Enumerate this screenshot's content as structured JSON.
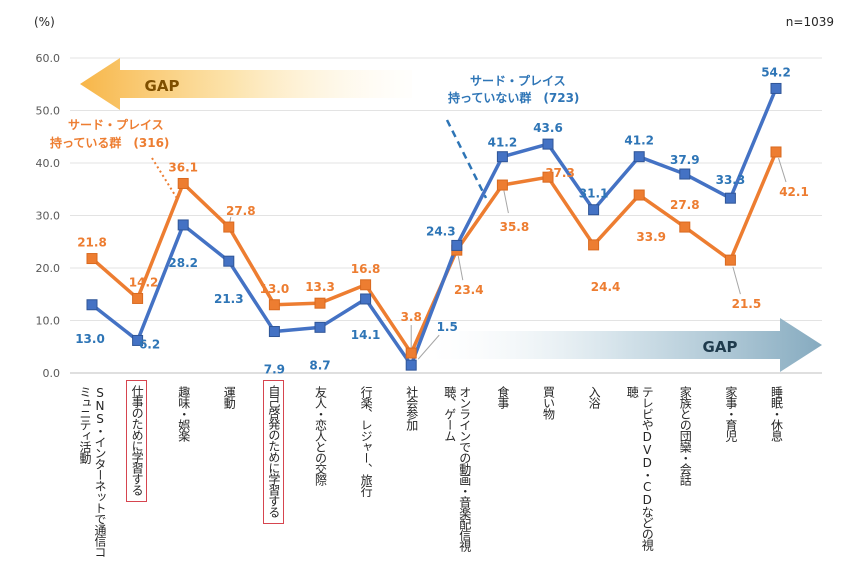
{
  "chart_data": {
    "type": "line",
    "unit_label": "(%)",
    "sample_size": "n=1039",
    "ylim": [
      0,
      60
    ],
    "yticks": [
      "0.0",
      "10.0",
      "20.0",
      "30.0",
      "40.0",
      "50.0",
      "60.0"
    ],
    "categories": [
      "SNS・インターネットで通信コミュニティ活動",
      "仕事のために学習する",
      "趣味・娯楽",
      "運動",
      "自己啓発のために学習する",
      "友人・恋人との交際",
      "行楽、レジャー、旅行",
      "社会参加",
      "オンラインでの動画・音楽配信視聴、ゲーム",
      "食事",
      "買い物",
      "入浴",
      "テレビやDVD・CDなどの視聴",
      "家族との団欒・会話",
      "家事・育児",
      "睡眠・休息"
    ],
    "highlighted_categories": [
      1,
      4
    ],
    "series": [
      {
        "name": "サード・プレイス持っている群 (316)",
        "color": "#ed7d31",
        "values": [
          21.8,
          14.2,
          36.1,
          27.8,
          13.0,
          13.3,
          16.8,
          3.8,
          23.4,
          35.8,
          37.3,
          24.4,
          33.9,
          27.8,
          21.5,
          42.1
        ],
        "labels": [
          "21.8",
          "14.2",
          "36.1",
          "27.8",
          "13.0",
          "13.3",
          "16.8",
          "3.8",
          "23.4",
          "35.8",
          "37.3",
          "24.4",
          "33.9",
          "27.8",
          "21.5",
          "42.1"
        ]
      },
      {
        "name": "サード・プレイス持っていない群 (723)",
        "color": "#4472c4",
        "values": [
          13.0,
          6.2,
          28.2,
          21.3,
          7.9,
          8.7,
          14.1,
          1.5,
          24.3,
          41.2,
          43.6,
          31.1,
          41.2,
          37.9,
          33.3,
          54.2
        ],
        "labels": [
          "13.0",
          "6.2",
          "28.2",
          "21.3",
          "7.9",
          "8.7",
          "14.1",
          "1.5",
          "24.3",
          "41.2",
          "43.6",
          "31.1",
          "41.2",
          "37.9",
          "33.3",
          "54.2"
        ]
      }
    ],
    "annotations": {
      "gap_left": "GAP",
      "gap_right": "GAP",
      "has_line1": "サード・プレイス",
      "has_line2": "持っている群　(316)",
      "not_line1": "サード・プレイス",
      "not_line2": "持っていない群　(723)"
    }
  }
}
